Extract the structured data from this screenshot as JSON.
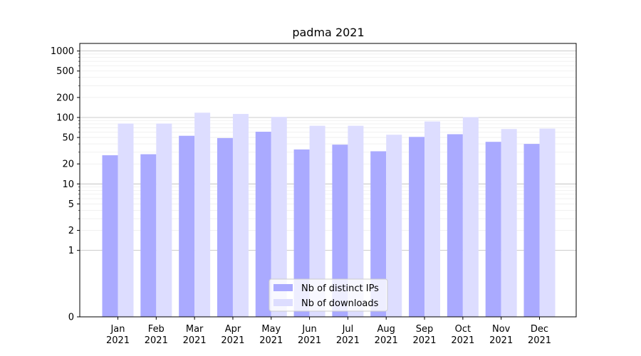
{
  "chart_data": {
    "type": "bar",
    "title": "padma 2021",
    "xlabel": "",
    "ylabel": "",
    "yscale": "symlog",
    "ylim": [
      0,
      1300
    ],
    "yticks": [
      0,
      1,
      2,
      5,
      10,
      20,
      50,
      100,
      200,
      500,
      1000
    ],
    "ytick_labels": [
      "0",
      "1",
      "2",
      "5",
      "10",
      "20",
      "50",
      "100",
      "200",
      "500",
      "1000"
    ],
    "categories": [
      "Jan\n2021",
      "Feb\n2021",
      "Mar\n2021",
      "Apr\n2021",
      "May\n2021",
      "Jun\n2021",
      "Jul\n2021",
      "Aug\n2021",
      "Sep\n2021",
      "Oct\n2021",
      "Nov\n2021",
      "Dec\n2021"
    ],
    "series": [
      {
        "name": "Nb of distinct IPs",
        "color": "#aaaaff",
        "values": [
          27,
          28,
          53,
          49,
          61,
          33,
          39,
          31,
          51,
          56,
          43,
          40
        ]
      },
      {
        "name": "Nb of downloads",
        "color": "#ddddff",
        "values": [
          81,
          81,
          118,
          113,
          102,
          75,
          75,
          55,
          87,
          101,
          67,
          68
        ]
      }
    ],
    "grid": true,
    "legend_position": "lower center"
  }
}
